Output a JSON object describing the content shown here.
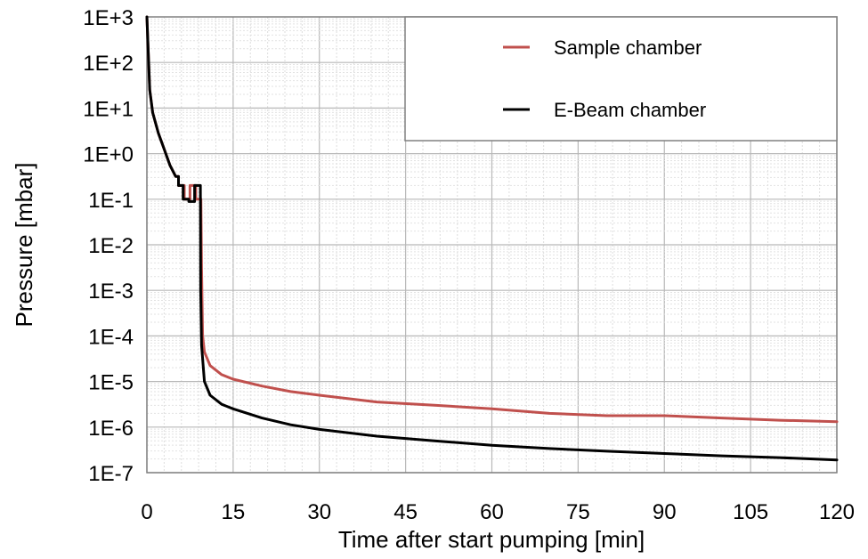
{
  "chart_data": {
    "type": "line",
    "title": "",
    "xlabel": "Time after start pumping [min]",
    "ylabel": "Pressure [mbar]",
    "xlim": [
      0,
      120
    ],
    "ylim_log10": [
      -7,
      3
    ],
    "y_scale": "log",
    "x_ticks": [
      0,
      15,
      30,
      45,
      60,
      75,
      90,
      105,
      120
    ],
    "x_tick_labels": [
      "0",
      "15",
      "30",
      "45",
      "60",
      "75",
      "90",
      "105",
      "120"
    ],
    "y_ticks_log10": [
      3,
      2,
      1,
      0,
      -1,
      -2,
      -3,
      -4,
      -5,
      -6,
      -7
    ],
    "y_tick_labels": [
      "1E+3",
      "1E+2",
      "1E+1",
      "1E+0",
      "1E-1",
      "1E-2",
      "1E-3",
      "1E-4",
      "1E-5",
      "1E-6",
      "1E-7"
    ],
    "grid": true,
    "legend_position": "top-right",
    "series": [
      {
        "name": "Sample chamber",
        "color": "#c0504d",
        "points": [
          [
            0,
            3.0
          ],
          [
            0.5,
            1.4
          ],
          [
            1,
            0.9
          ],
          [
            2,
            0.45
          ],
          [
            3,
            0.1
          ],
          [
            4,
            -0.25
          ],
          [
            5,
            -0.5
          ],
          [
            5.5,
            -0.5
          ],
          [
            5.5,
            -0.7
          ],
          [
            6.5,
            -0.7
          ],
          [
            6.5,
            -1.0
          ],
          [
            7.5,
            -1.0
          ],
          [
            7.5,
            -0.7
          ],
          [
            8.5,
            -0.7
          ],
          [
            8.5,
            -1.0
          ],
          [
            9.4,
            -1.0
          ],
          [
            9.5,
            -2.5
          ],
          [
            9.7,
            -4.0
          ],
          [
            10,
            -4.35
          ],
          [
            11,
            -4.65
          ],
          [
            13,
            -4.85
          ],
          [
            15,
            -4.95
          ],
          [
            20,
            -5.1
          ],
          [
            25,
            -5.22
          ],
          [
            30,
            -5.3
          ],
          [
            40,
            -5.45
          ],
          [
            50,
            -5.52
          ],
          [
            60,
            -5.6
          ],
          [
            70,
            -5.7
          ],
          [
            80,
            -5.75
          ],
          [
            90,
            -5.75
          ],
          [
            100,
            -5.8
          ],
          [
            110,
            -5.85
          ],
          [
            120,
            -5.88
          ]
        ]
      },
      {
        "name": "E-Beam chamber",
        "color": "#000000",
        "points": [
          [
            0,
            3.0
          ],
          [
            0.5,
            1.4
          ],
          [
            1,
            0.9
          ],
          [
            2,
            0.45
          ],
          [
            3,
            0.1
          ],
          [
            4,
            -0.25
          ],
          [
            5,
            -0.5
          ],
          [
            5.5,
            -0.5
          ],
          [
            5.5,
            -0.7
          ],
          [
            6.3,
            -0.7
          ],
          [
            6.3,
            -1.0
          ],
          [
            7.3,
            -1.0
          ],
          [
            7.3,
            -1.05
          ],
          [
            8.3,
            -1.05
          ],
          [
            8.3,
            -0.7
          ],
          [
            9.3,
            -0.7
          ],
          [
            9.35,
            -3.0
          ],
          [
            9.5,
            -4.2
          ],
          [
            10,
            -5.0
          ],
          [
            11,
            -5.3
          ],
          [
            13,
            -5.5
          ],
          [
            15,
            -5.6
          ],
          [
            20,
            -5.8
          ],
          [
            25,
            -5.95
          ],
          [
            30,
            -6.05
          ],
          [
            40,
            -6.2
          ],
          [
            50,
            -6.3
          ],
          [
            60,
            -6.4
          ],
          [
            70,
            -6.47
          ],
          [
            80,
            -6.53
          ],
          [
            90,
            -6.58
          ],
          [
            100,
            -6.63
          ],
          [
            110,
            -6.67
          ],
          [
            120,
            -6.72
          ]
        ]
      }
    ]
  }
}
